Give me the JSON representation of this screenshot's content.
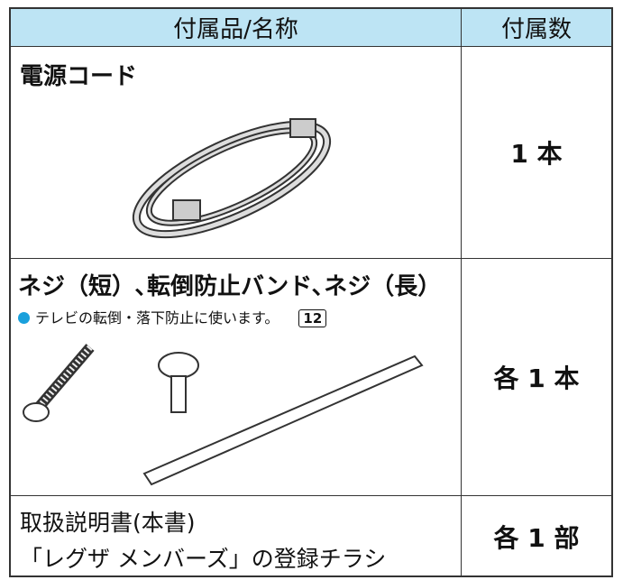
{
  "table": {
    "header": [
      "付属品/名称",
      "付属数"
    ],
    "rows": [
      {
        "name": "電源コード",
        "count": "1 本"
      },
      {
        "name": "ネジ（短）､転倒防止バンド､ネジ（長）",
        "note": "テレビの転倒・落下防止に使います。",
        "page_ref": "12",
        "count": "各 1 本"
      },
      {
        "name": [
          "取扱説明書(本書)",
          "「レグザ メンバーズ」の登録チラシ"
        ],
        "count": "各 1 部"
      }
    ]
  }
}
